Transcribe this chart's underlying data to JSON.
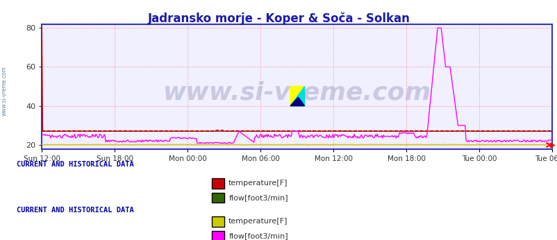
{
  "title": "Jadransko morje - Koper & Soča - Solkan",
  "title_color": "#1a1aaa",
  "title_fontsize": 12,
  "background_color": "#ffffff",
  "plot_bg_color": "#f0f0ff",
  "ylim": [
    18,
    82
  ],
  "yticks": [
    20,
    40,
    60,
    80
  ],
  "xlabel_ticks": [
    "Sun 12:00",
    "Sun 18:00",
    "Mon 00:00",
    "Mon 06:00",
    "Mon 12:00",
    "Mon 18:00",
    "Tue 00:00",
    "Tue 06:00"
  ],
  "n_points": 576,
  "watermark": "www.si-vreme.com",
  "legend1_title": "CURRENT AND HISTORICAL DATA",
  "legend1_labels": [
    "temperature[F]",
    "flow[foot3/min]"
  ],
  "legend1_colors": [
    "#cc0000",
    "#336600"
  ],
  "legend2_title": "CURRENT AND HISTORICAL DATA",
  "legend2_labels": [
    "temperature[F]",
    "flow[foot3/min]"
  ],
  "legend2_colors": [
    "#cccc00",
    "#ff00ff"
  ],
  "border_color": "#3333cc",
  "grid_color": "#ff8888",
  "grid_style": ":",
  "koper_temp_color": "#cc0000",
  "koper_flow_color": "#660000",
  "soca_temp_color": "#cccc00",
  "soca_flow_color": "#ff00ff",
  "sidebar_text_color": "#6688aa",
  "sidebar_text": "www.si-vreme.com"
}
